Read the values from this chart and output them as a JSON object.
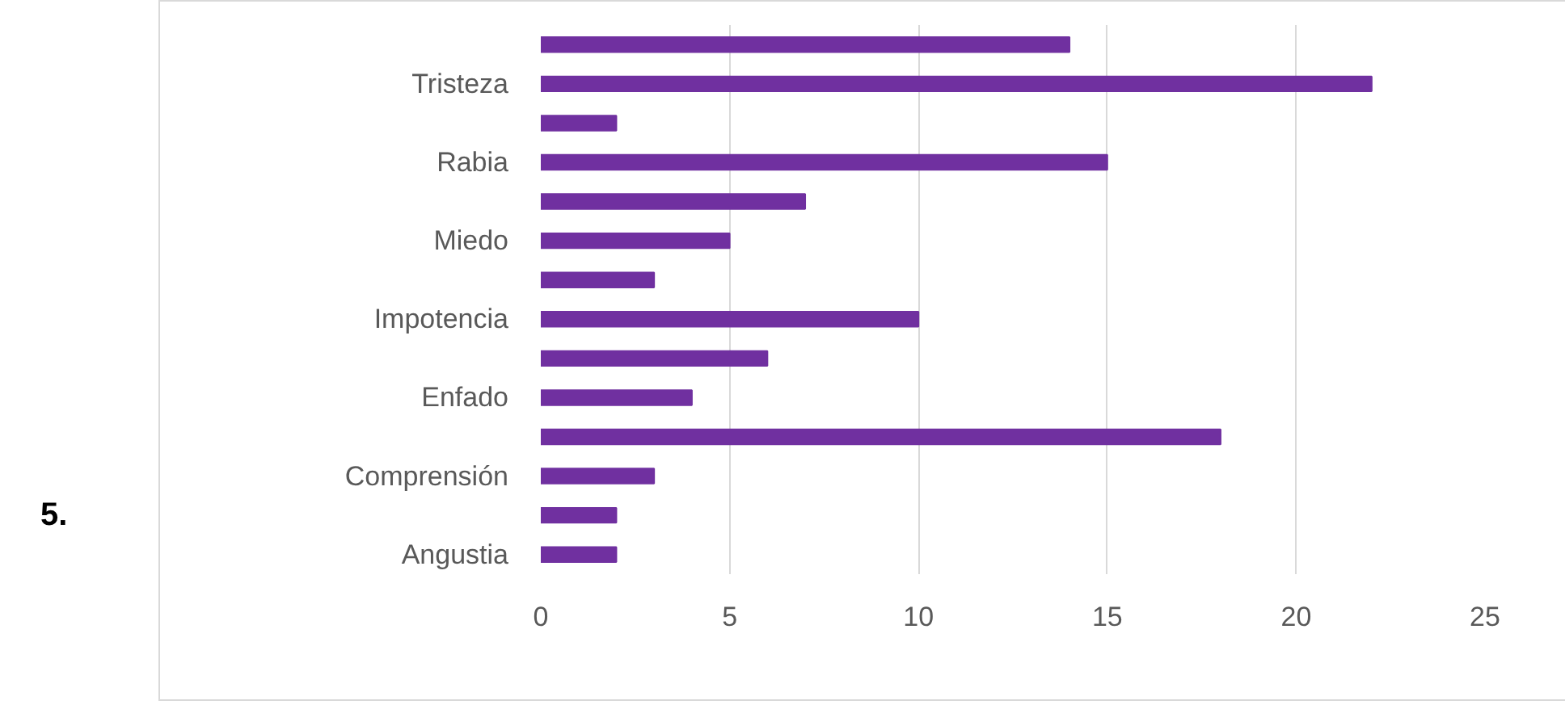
{
  "chart_data": {
    "type": "bar",
    "orientation": "horizontal",
    "categories": [
      null,
      "Tristeza",
      null,
      "Rabia",
      null,
      "Miedo",
      null,
      "Impotencia",
      null,
      "Enfado",
      null,
      "Comprensión",
      null,
      "Angustia"
    ],
    "values": [
      14,
      22,
      2,
      15,
      7,
      5,
      3,
      10,
      6,
      4,
      18,
      3,
      2,
      2
    ],
    "color": "#7030a0",
    "xlim": [
      0,
      25
    ],
    "xticks": [
      0,
      5,
      10,
      15,
      20,
      25
    ],
    "grid": "x",
    "annotations": [
      "5."
    ]
  }
}
